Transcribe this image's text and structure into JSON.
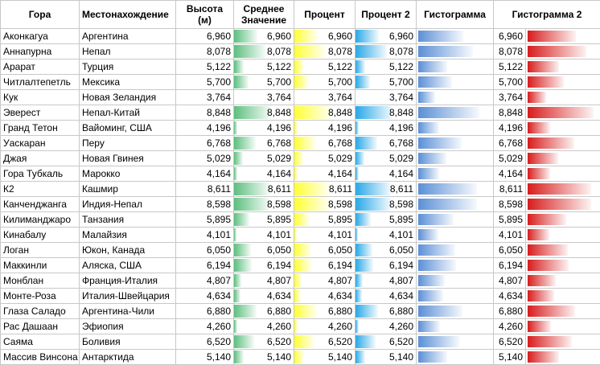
{
  "headers": {
    "mountain": "Гора",
    "location": "Местонахождение",
    "height": "Высота (м)",
    "average": "Среднее Значение",
    "percent": "Процент",
    "percent2": "Процент 2",
    "histogram": "Гистограмма",
    "histogram2": "Гистограмма 2"
  },
  "colors": {
    "average_fill": "#5cbf7e",
    "percent_fill": "#ffff33",
    "percent2_fill": "#29a8e6",
    "histogram_fill": "#5b8fd6",
    "histogram2_fill": "#d81c1c",
    "grid": "#c8c8c8"
  },
  "scale": {
    "min": 3764,
    "max": 8848
  },
  "rows": [
    {
      "mountain": "Аконкагуа",
      "location": "Аргентина",
      "height": 6960,
      "display": "6,960"
    },
    {
      "mountain": "Аннапурна",
      "location": "Непал",
      "height": 8078,
      "display": "8,078"
    },
    {
      "mountain": "Арарат",
      "location": "Турция",
      "height": 5122,
      "display": "5,122"
    },
    {
      "mountain": "Читлалтепетль",
      "location": "Мексика",
      "height": 5700,
      "display": "5,700"
    },
    {
      "mountain": "Кук",
      "location": "Новая Зеландия",
      "height": 3764,
      "display": "3,764"
    },
    {
      "mountain": "Эверест",
      "location": "Непал-Китай",
      "height": 8848,
      "display": "8,848"
    },
    {
      "mountain": "Гранд Тетон",
      "location": "Вайоминг, США",
      "height": 4196,
      "display": "4,196"
    },
    {
      "mountain": "Уаскаран",
      "location": "Перу",
      "height": 6768,
      "display": "6,768"
    },
    {
      "mountain": "Джая",
      "location": "Новая Гвинея",
      "height": 5029,
      "display": "5,029"
    },
    {
      "mountain": "Гора Тубкаль",
      "location": "Марокко",
      "height": 4164,
      "display": "4,164"
    },
    {
      "mountain": "К2",
      "location": "Кашмир",
      "height": 8611,
      "display": "8,611"
    },
    {
      "mountain": "Канченджанга",
      "location": "Индия-Непал",
      "height": 8598,
      "display": "8,598"
    },
    {
      "mountain": "Килиманджаро",
      "location": "Танзания",
      "height": 5895,
      "display": "5,895"
    },
    {
      "mountain": "Кинабалу",
      "location": "Малайзия",
      "height": 4101,
      "display": "4,101"
    },
    {
      "mountain": "Логан",
      "location": "Юкон, Канада",
      "height": 6050,
      "display": "6,050"
    },
    {
      "mountain": "Маккинли",
      "location": "Аляска, США",
      "height": 6194,
      "display": "6,194"
    },
    {
      "mountain": "Монблан",
      "location": "Франция-Италия",
      "height": 4807,
      "display": "4,807"
    },
    {
      "mountain": "Монте-Роза",
      "location": "Италия-Швейцария",
      "height": 4634,
      "display": "4,634"
    },
    {
      "mountain": "Глаза Саладо",
      "location": "Аргентина-Чили",
      "height": 6880,
      "display": "6,880"
    },
    {
      "mountain": "Рас Дашаан",
      "location": "Эфиопия",
      "height": 4260,
      "display": "4,260"
    },
    {
      "mountain": "Саяма",
      "location": "Боливия",
      "height": 6520,
      "display": "6,520"
    },
    {
      "mountain": "Массив Винсона",
      "location": "Антарктида",
      "height": 5140,
      "display": "5,140"
    }
  ]
}
